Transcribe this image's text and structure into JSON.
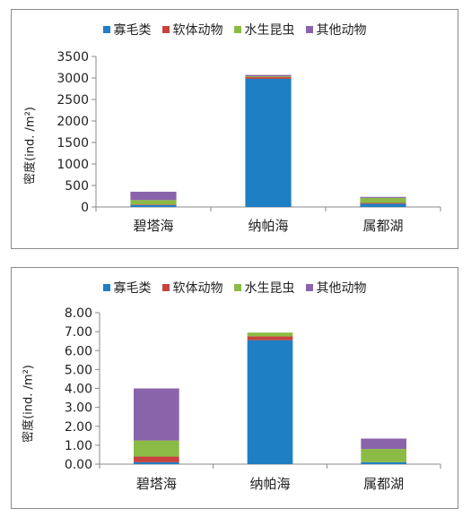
{
  "chart_data": [
    {
      "type": "bar",
      "stacked": true,
      "categories": [
        "碧塔海",
        "纳帕海",
        "属都湖"
      ],
      "series": [
        {
          "name": "寡毛类",
          "color": "#1f7fc4",
          "values": [
            45,
            2980,
            75
          ]
        },
        {
          "name": "软体动物",
          "color": "#c8433f",
          "values": [
            15,
            40,
            20
          ]
        },
        {
          "name": "水生昆虫",
          "color": "#8bbb44",
          "values": [
            100,
            20,
            115
          ]
        },
        {
          "name": "其他动物",
          "color": "#8a64ab",
          "values": [
            195,
            30,
            25
          ]
        }
      ],
      "ylabel": "密度(ind. /m²)",
      "ylim": [
        0,
        3500
      ],
      "yticks": [
        "0",
        "500",
        "1000",
        "1500",
        "2000",
        "2500",
        "3000",
        "3500"
      ],
      "legend": "top",
      "grid": false
    },
    {
      "type": "bar",
      "stacked": true,
      "categories": [
        "碧塔海",
        "纳帕海",
        "属都湖"
      ],
      "series": [
        {
          "name": "寡毛类",
          "color": "#1f7fc4",
          "values": [
            0.1,
            6.55,
            0.1
          ]
        },
        {
          "name": "软体动物",
          "color": "#c8433f",
          "values": [
            0.3,
            0.2,
            0.0
          ]
        },
        {
          "name": "水生昆虫",
          "color": "#8bbb44",
          "values": [
            0.85,
            0.2,
            0.7
          ]
        },
        {
          "name": "其他动物",
          "color": "#8a64ab",
          "values": [
            2.75,
            0.0,
            0.55
          ]
        }
      ],
      "ylabel": "密度(ind. /m²)",
      "ylim": [
        0,
        8
      ],
      "yticks": [
        "0.00",
        "1.00",
        "2.00",
        "3.00",
        "4.00",
        "5.00",
        "6.00",
        "7.00",
        "8.00"
      ],
      "legend": "top",
      "grid": false
    }
  ]
}
